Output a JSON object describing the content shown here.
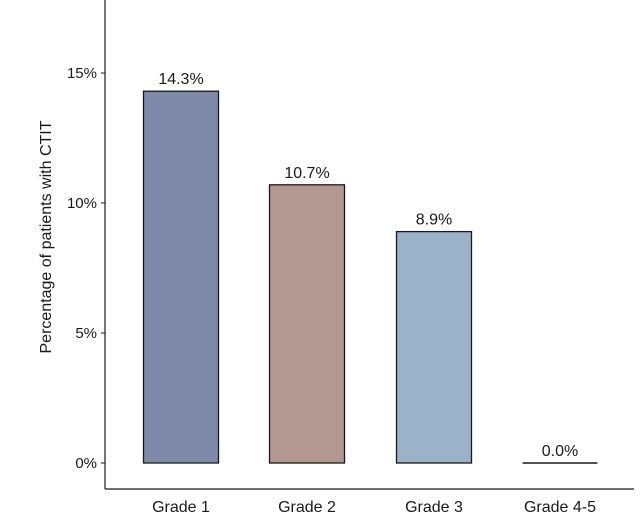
{
  "chart_data": {
    "type": "bar",
    "title": "",
    "xlabel": "",
    "ylabel": "Percentage of patients with CTIT",
    "categories": [
      "Grade 1",
      "Grade 2",
      "Grade 3",
      "Grade 4-5"
    ],
    "values": [
      14.3,
      10.7,
      8.9,
      0.0
    ],
    "data_labels": [
      "14.3%",
      "10.7%",
      "8.9%",
      "0.0%"
    ],
    "ylim": [
      0,
      17.6
    ],
    "yticks": [
      0,
      5,
      10,
      15
    ],
    "ytick_labels": [
      "0%",
      "5%",
      "10%",
      "15%"
    ],
    "grid": false,
    "legend": "none",
    "colors": [
      "#7f8aaa",
      "#b39892",
      "#9cb2c9",
      "#ffffff"
    ]
  }
}
